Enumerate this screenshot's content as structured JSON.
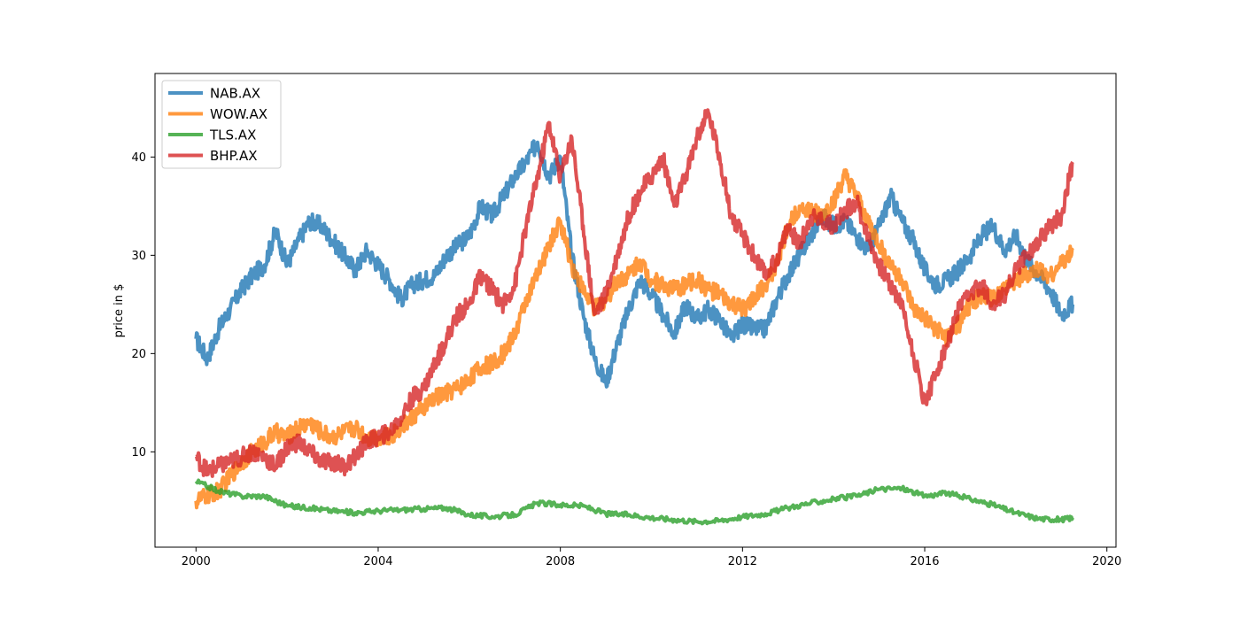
{
  "chart_data": {
    "type": "line",
    "title": "",
    "xlabel": "",
    "ylabel": "price in $",
    "xlim": [
      1999.1,
      2020.2
    ],
    "ylim": [
      0.3,
      48.5
    ],
    "x_ticks": [
      2000,
      2004,
      2008,
      2012,
      2016,
      2020
    ],
    "x_tick_labels": [
      "2000",
      "2004",
      "2008",
      "2012",
      "2016",
      "2020"
    ],
    "y_ticks": [
      10,
      20,
      30,
      40
    ],
    "y_tick_labels": [
      "10",
      "20",
      "30",
      "40"
    ],
    "legend_position": "top-left",
    "grid": false,
    "series": [
      {
        "name": "NAB.AX",
        "color": "#1f77b4",
        "x": [
          2000.0,
          2000.25,
          2000.5,
          2000.75,
          2001.0,
          2001.25,
          2001.5,
          2001.75,
          2002.0,
          2002.25,
          2002.5,
          2002.75,
          2003.0,
          2003.25,
          2003.5,
          2003.75,
          2004.0,
          2004.25,
          2004.5,
          2004.75,
          2005.0,
          2005.25,
          2005.5,
          2005.75,
          2006.0,
          2006.25,
          2006.5,
          2006.75,
          2007.0,
          2007.25,
          2007.5,
          2007.75,
          2008.0,
          2008.25,
          2008.5,
          2008.75,
          2009.0,
          2009.25,
          2009.5,
          2009.75,
          2010.0,
          2010.25,
          2010.5,
          2010.75,
          2011.0,
          2011.25,
          2011.5,
          2011.75,
          2012.0,
          2012.25,
          2012.5,
          2012.75,
          2013.0,
          2013.25,
          2013.5,
          2013.75,
          2014.0,
          2014.25,
          2014.5,
          2014.75,
          2015.0,
          2015.25,
          2015.5,
          2015.75,
          2016.0,
          2016.25,
          2016.5,
          2016.75,
          2017.0,
          2017.25,
          2017.5,
          2017.75,
          2018.0,
          2018.25,
          2018.5,
          2018.75,
          2019.0,
          2019.25
        ],
        "y": [
          21.5,
          19.5,
          22.5,
          24.5,
          26.5,
          28.0,
          29.0,
          32.5,
          29.0,
          31.5,
          33.5,
          33.0,
          31.5,
          30.0,
          28.5,
          30.5,
          29.0,
          27.5,
          25.5,
          27.0,
          27.5,
          28.0,
          30.0,
          31.0,
          32.0,
          35.0,
          34.0,
          36.0,
          38.0,
          39.5,
          41.5,
          38.0,
          40.0,
          30.0,
          24.0,
          19.5,
          17.0,
          21.0,
          24.5,
          27.5,
          26.0,
          24.0,
          22.0,
          25.0,
          23.5,
          24.5,
          23.5,
          21.5,
          23.0,
          22.5,
          22.5,
          25.5,
          28.0,
          30.0,
          32.0,
          34.0,
          33.0,
          33.5,
          32.0,
          30.5,
          33.0,
          36.0,
          33.5,
          31.5,
          28.5,
          27.0,
          27.5,
          28.5,
          30.0,
          32.0,
          33.0,
          30.5,
          32.0,
          29.5,
          28.0,
          26.5,
          24.0,
          25.0
        ]
      },
      {
        "name": "WOW.AX",
        "color": "#ff7f0e",
        "x": [
          2000.0,
          2000.25,
          2000.5,
          2000.75,
          2001.0,
          2001.25,
          2001.5,
          2001.75,
          2002.0,
          2002.25,
          2002.5,
          2002.75,
          2003.0,
          2003.25,
          2003.5,
          2003.75,
          2004.0,
          2004.25,
          2004.5,
          2004.75,
          2005.0,
          2005.25,
          2005.5,
          2005.75,
          2006.0,
          2006.25,
          2006.5,
          2006.75,
          2007.0,
          2007.25,
          2007.5,
          2007.75,
          2008.0,
          2008.25,
          2008.5,
          2008.75,
          2009.0,
          2009.25,
          2009.5,
          2009.75,
          2010.0,
          2010.25,
          2010.5,
          2010.75,
          2011.0,
          2011.25,
          2011.5,
          2011.75,
          2012.0,
          2012.25,
          2012.5,
          2012.75,
          2013.0,
          2013.25,
          2013.5,
          2013.75,
          2014.0,
          2014.25,
          2014.5,
          2014.75,
          2015.0,
          2015.25,
          2015.5,
          2015.75,
          2016.0,
          2016.25,
          2016.5,
          2016.75,
          2017.0,
          2017.25,
          2017.5,
          2017.75,
          2018.0,
          2018.25,
          2018.5,
          2018.75,
          2019.0,
          2019.25
        ],
        "y": [
          5.0,
          5.5,
          6.0,
          7.5,
          9.0,
          10.0,
          11.0,
          12.0,
          11.5,
          12.5,
          13.0,
          12.0,
          11.5,
          12.0,
          12.5,
          11.5,
          11.5,
          11.5,
          12.5,
          13.5,
          14.5,
          15.5,
          16.0,
          16.5,
          17.5,
          18.5,
          19.0,
          20.0,
          22.0,
          25.5,
          28.0,
          31.0,
          33.5,
          29.0,
          26.5,
          24.5,
          25.5,
          27.5,
          28.0,
          29.5,
          27.5,
          27.0,
          26.5,
          27.0,
          27.5,
          26.5,
          26.0,
          25.0,
          24.5,
          25.5,
          27.0,
          29.0,
          33.0,
          35.0,
          34.5,
          34.0,
          35.5,
          38.0,
          36.0,
          33.5,
          31.0,
          29.0,
          27.5,
          24.5,
          23.5,
          22.5,
          21.5,
          23.0,
          25.0,
          26.0,
          25.5,
          26.5,
          27.5,
          28.0,
          28.5,
          28.0,
          29.0,
          30.5
        ]
      },
      {
        "name": "TLS.AX",
        "color": "#2ca02c",
        "x": [
          2000.0,
          2000.5,
          2001.0,
          2001.5,
          2002.0,
          2002.5,
          2003.0,
          2003.5,
          2004.0,
          2004.5,
          2005.0,
          2005.5,
          2006.0,
          2006.5,
          2007.0,
          2007.5,
          2008.0,
          2008.5,
          2009.0,
          2009.5,
          2010.0,
          2010.5,
          2011.0,
          2011.5,
          2012.0,
          2012.5,
          2013.0,
          2013.5,
          2014.0,
          2014.5,
          2015.0,
          2015.5,
          2016.0,
          2016.5,
          2017.0,
          2017.5,
          2018.0,
          2018.5,
          2019.0,
          2019.25
        ],
        "y": [
          7.0,
          6.0,
          5.5,
          5.5,
          4.5,
          4.3,
          4.0,
          3.8,
          4.0,
          4.1,
          4.2,
          4.3,
          3.6,
          3.4,
          3.6,
          4.8,
          4.6,
          4.5,
          3.7,
          3.6,
          3.3,
          3.1,
          2.9,
          3.0,
          3.4,
          3.7,
          4.3,
          4.8,
          5.2,
          5.5,
          6.2,
          6.3,
          5.5,
          5.8,
          5.2,
          4.6,
          3.8,
          3.2,
          3.1,
          3.3
        ]
      },
      {
        "name": "BHP.AX",
        "color": "#d62728",
        "x": [
          2000.0,
          2000.25,
          2000.5,
          2000.75,
          2001.0,
          2001.25,
          2001.5,
          2001.75,
          2002.0,
          2002.25,
          2002.5,
          2002.75,
          2003.0,
          2003.25,
          2003.5,
          2003.75,
          2004.0,
          2004.25,
          2004.5,
          2004.75,
          2005.0,
          2005.25,
          2005.5,
          2005.75,
          2006.0,
          2006.25,
          2006.5,
          2006.75,
          2007.0,
          2007.25,
          2007.5,
          2007.75,
          2008.0,
          2008.25,
          2008.5,
          2008.75,
          2009.0,
          2009.25,
          2009.5,
          2009.75,
          2010.0,
          2010.25,
          2010.5,
          2010.75,
          2011.0,
          2011.25,
          2011.5,
          2011.75,
          2012.0,
          2012.25,
          2012.5,
          2012.75,
          2013.0,
          2013.25,
          2013.5,
          2013.75,
          2014.0,
          2014.25,
          2014.5,
          2014.75,
          2015.0,
          2015.25,
          2015.5,
          2015.75,
          2016.0,
          2016.25,
          2016.5,
          2016.75,
          2017.0,
          2017.25,
          2017.5,
          2017.75,
          2018.0,
          2018.25,
          2018.5,
          2018.75,
          2019.0,
          2019.25
        ],
        "y": [
          9.5,
          8.0,
          8.5,
          9.0,
          9.5,
          10.0,
          9.5,
          8.5,
          10.5,
          11.0,
          10.0,
          9.0,
          9.0,
          8.5,
          9.5,
          11.0,
          11.5,
          12.0,
          13.5,
          15.5,
          16.5,
          19.0,
          21.5,
          24.0,
          25.0,
          28.0,
          26.5,
          25.0,
          27.0,
          33.0,
          38.0,
          43.5,
          38.0,
          42.0,
          33.0,
          24.0,
          26.0,
          30.0,
          34.0,
          36.5,
          38.0,
          40.0,
          35.0,
          38.0,
          42.0,
          44.5,
          40.0,
          34.0,
          32.0,
          30.0,
          28.0,
          29.5,
          33.0,
          31.0,
          34.0,
          33.5,
          33.0,
          34.5,
          35.5,
          32.0,
          29.0,
          27.0,
          25.0,
          20.0,
          15.0,
          18.0,
          21.0,
          24.5,
          26.0,
          27.0,
          25.0,
          26.0,
          28.5,
          30.0,
          31.5,
          33.0,
          34.0,
          39.5
        ]
      }
    ]
  }
}
